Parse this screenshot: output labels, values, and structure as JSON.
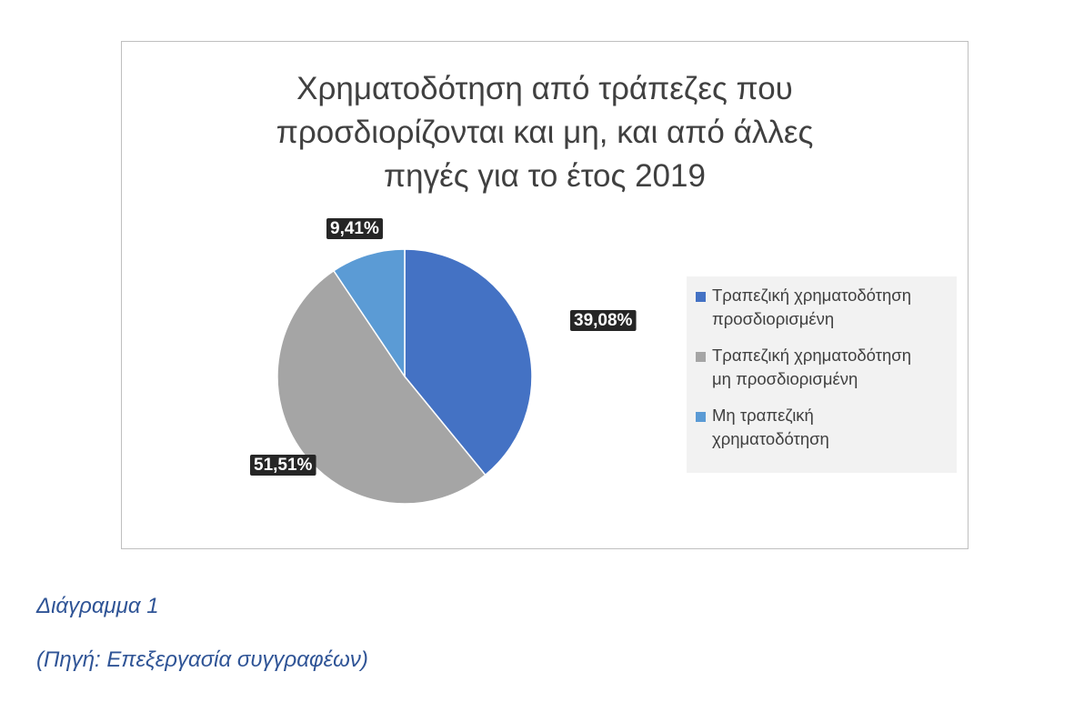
{
  "chart_data": {
    "type": "pie",
    "title": "Χρηματοδότηση από τράπεζες που προσδιορίζονται και μη, και από άλλες πηγές για το έτος 2019",
    "title_lines": [
      "Χρηματοδότηση από τράπεζες που",
      "προσδιορίζονται και μη, και από άλλες",
      "πηγές για το έτος 2019"
    ],
    "legend_position": "right",
    "slices": [
      {
        "name": "Τραπεζική χρηματοδότηση προσδιορισμένη",
        "legend_label": "Τραπεζική χρηματοδότηση\nπροσδιορισμένη",
        "value": 39.08,
        "label": "39,08%",
        "color": "#4472c4"
      },
      {
        "name": "Τραπεζική χρηματοδότηση μη προσδιορισμένη",
        "legend_label": "Τραπεζική χρηματοδότηση\nμη προσδιορισμένη",
        "value": 51.51,
        "label": "51,51%",
        "color": "#a5a5a5"
      },
      {
        "name": "Μη τραπεζική χρηματοδότηση",
        "legend_label": "Μη τραπεζική\nχρηματοδότηση",
        "value": 9.41,
        "label": "9,41%",
        "color": "#5b9bd5"
      }
    ]
  },
  "captions": {
    "figure": "Διάγραμμα 1",
    "source": "(Πηγή: Επεξεργασία συγγραφέων)"
  }
}
